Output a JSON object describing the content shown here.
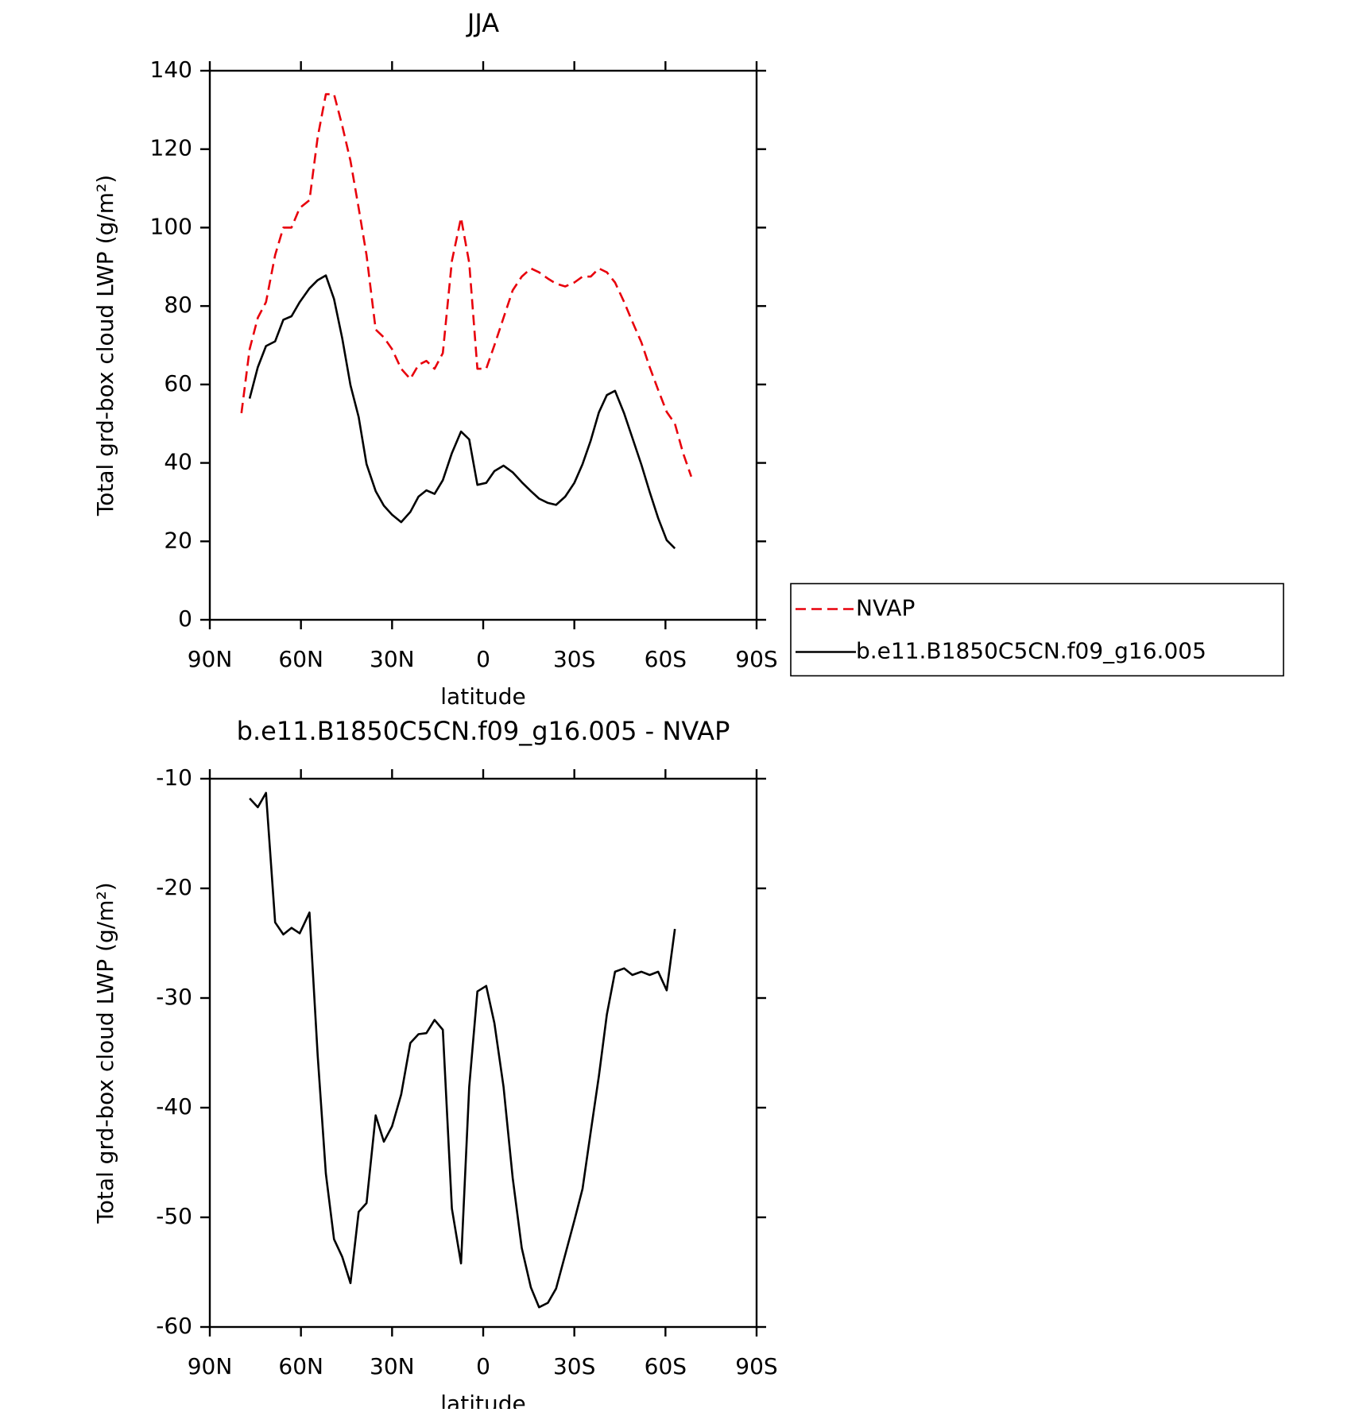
{
  "chart_data": [
    {
      "type": "line",
      "title": "JJA",
      "xlabel": "latitude",
      "ylabel": "Total grd-box cloud LWP (g/m²)",
      "xlim": [
        90,
        -90
      ],
      "xticks": [
        {
          "value": 90,
          "label": "90N"
        },
        {
          "value": 60,
          "label": "60N"
        },
        {
          "value": 30,
          "label": "30N"
        },
        0,
        {
          "value": -30,
          "label": "30S"
        },
        {
          "value": -60,
          "label": "60S"
        },
        {
          "value": -90,
          "label": "90S"
        }
      ],
      "ylim": [
        0,
        140
      ],
      "yticks": [
        0,
        20,
        40,
        60,
        80,
        100,
        120,
        140
      ],
      "legend": "right",
      "x": [
        79.6,
        76.9,
        74.2,
        71.5,
        68.5,
        65.8,
        63.1,
        60.4,
        57.2,
        54.5,
        51.8,
        49.1,
        46.4,
        43.7,
        41.0,
        38.4,
        35.4,
        32.7,
        30.0,
        27.0,
        24.0,
        21.3,
        18.7,
        16.0,
        13.3,
        10.3,
        7.3,
        4.6,
        1.9,
        -1.0,
        -3.7,
        -6.7,
        -9.7,
        -12.7,
        -15.7,
        -18.4,
        -21.3,
        -24.0,
        -27.0,
        -30.0,
        -32.7,
        -35.4,
        -38.1,
        -40.7,
        -43.4,
        -46.4,
        -49.1,
        -52.1,
        -54.8,
        -57.6,
        -60.4,
        -63.1,
        -65.8,
        -68.5
      ],
      "series": [
        {
          "name": "NVAP",
          "color": "#e8000b",
          "dash": true,
          "values": [
            52.7,
            69,
            77,
            81,
            93,
            100,
            100,
            105,
            107,
            123,
            134,
            134,
            126,
            117,
            105,
            93,
            74,
            72,
            69,
            64,
            61.4,
            65,
            66,
            64,
            68,
            91.5,
            102.5,
            91,
            64,
            64,
            70,
            77,
            84,
            87.5,
            89.6,
            88.6,
            87,
            85.7,
            85,
            86,
            87.5,
            87.5,
            89.6,
            88.6,
            86,
            81,
            76,
            70.7,
            64.4,
            58.6,
            53,
            50,
            42.5,
            36.5
          ]
        },
        {
          "name": "b.e11.B1850C5CN.f09_g16.005",
          "color": "#000000",
          "dash": false,
          "values": [
            null,
            56.4,
            64.4,
            69.8,
            71,
            76.5,
            77.4,
            81,
            84.5,
            86.6,
            87.8,
            81.8,
            71.8,
            59.8,
            51.7,
            39.7,
            32.8,
            29.1,
            26.8,
            24.9,
            27.5,
            31.4,
            33,
            32.1,
            35.6,
            42.5,
            48,
            46,
            34.4,
            34.9,
            37.9,
            39.3,
            37.6,
            35.1,
            32.8,
            30.9,
            29.8,
            29.3,
            31.4,
            34.9,
            39.7,
            45.7,
            52.9,
            57.3,
            58.4,
            52.6,
            46.4,
            39.5,
            32.6,
            25.9,
            20.3,
            18.2,
            null,
            null
          ]
        }
      ]
    },
    {
      "type": "line",
      "title": "b.e11.B1850C5CN.f09_g16.005 - NVAP",
      "xlabel": "latitude",
      "ylabel": "Total grd-box cloud LWP (g/m²)",
      "xlim": [
        90,
        -90
      ],
      "xticks": [
        {
          "value": 90,
          "label": "90N"
        },
        {
          "value": 60,
          "label": "60N"
        },
        {
          "value": 30,
          "label": "30N"
        },
        0,
        {
          "value": -30,
          "label": "30S"
        },
        {
          "value": -60,
          "label": "60S"
        },
        {
          "value": -90,
          "label": "90S"
        }
      ],
      "ylim": [
        -60,
        -10
      ],
      "yticks": [
        -60,
        -50,
        -40,
        -30,
        -20,
        -10
      ],
      "x": [
        79.6,
        76.9,
        74.2,
        71.5,
        68.5,
        65.8,
        63.1,
        60.4,
        57.2,
        54.5,
        51.8,
        49.1,
        46.4,
        43.7,
        41.0,
        38.4,
        35.4,
        32.7,
        30.0,
        27.0,
        24.0,
        21.3,
        18.7,
        16.0,
        13.3,
        10.3,
        7.3,
        4.6,
        1.9,
        -1.0,
        -3.7,
        -6.7,
        -9.7,
        -12.7,
        -15.7,
        -18.4,
        -21.3,
        -24.0,
        -27.0,
        -30.0,
        -32.7,
        -35.4,
        -38.1,
        -40.7,
        -43.4,
        -46.4,
        -49.1,
        -52.1,
        -54.8,
        -57.6,
        -60.4,
        -63.1,
        -65.8,
        -68.5
      ],
      "series": [
        {
          "color": "#000000",
          "dash": false,
          "values": [
            null,
            -11.8,
            -12.6,
            -11.3,
            -23.1,
            -24.2,
            -23.6,
            -24.1,
            -22.2,
            -35.2,
            -46,
            -52,
            -53.6,
            -56,
            -49.5,
            -48.7,
            -40.7,
            -43.1,
            -41.7,
            -38.8,
            -34.1,
            -33.3,
            -33.2,
            -32,
            -32.9,
            -49.2,
            -54.2,
            -38.1,
            -29.4,
            -28.9,
            -32.3,
            -38.1,
            -46.4,
            -52.8,
            -56.4,
            -58.2,
            -57.8,
            -56.5,
            -53.4,
            -50.3,
            -47.4,
            -42.2,
            -37.1,
            -31.5,
            -27.6,
            -27.3,
            -27.9,
            -27.6,
            -27.9,
            -27.6,
            -29.3,
            -23.7,
            null,
            null
          ]
        }
      ]
    }
  ]
}
